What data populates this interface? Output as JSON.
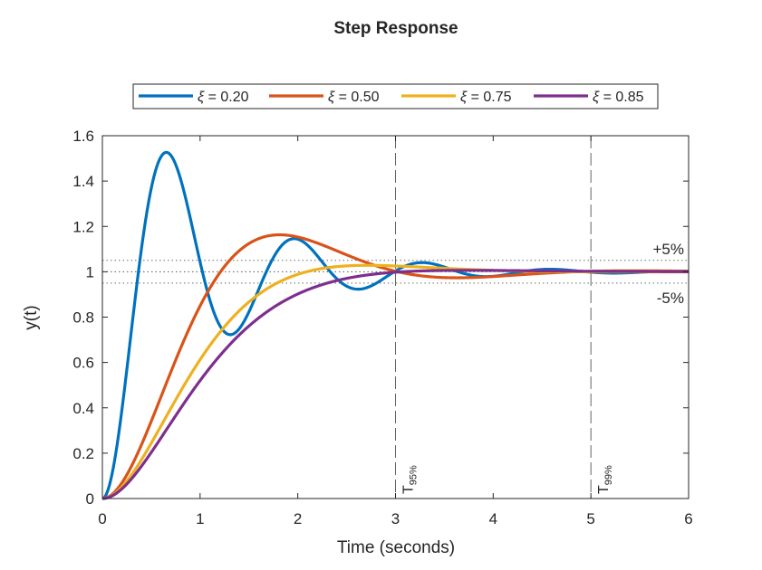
{
  "chart_data": {
    "type": "line",
    "title": "Step Response",
    "xlabel": "Time (seconds)",
    "ylabel": "y(t)",
    "xlim": [
      0,
      6
    ],
    "ylim": [
      0,
      1.6
    ],
    "xticks": [
      0,
      1,
      2,
      3,
      4,
      5,
      6
    ],
    "xtick_labels": [
      "0",
      "1",
      "2",
      "3",
      "4",
      "5",
      "6"
    ],
    "yticks": [
      0,
      0.2,
      0.4,
      0.6,
      0.8,
      1,
      1.2,
      1.4,
      1.6
    ],
    "ytick_labels": [
      "0",
      "0.2",
      "0.4",
      "0.6",
      "0.8",
      "1",
      "1.2",
      "1.4",
      "1.6"
    ],
    "grid": false,
    "legend_position": "top-center-outside",
    "legend_orientation": "horizontal",
    "series": [
      {
        "name": "ξ = 0.20",
        "symbol": "ξ",
        "value_text": " = 0.20",
        "zeta": 0.2,
        "wn": 4.9,
        "color": "#0072BD"
      },
      {
        "name": "ξ = 0.50",
        "symbol": "ξ",
        "value_text": " = 0.50",
        "zeta": 0.5,
        "wn": 2.0,
        "color": "#D95319"
      },
      {
        "name": "ξ = 0.75",
        "symbol": "ξ",
        "value_text": " = 0.75",
        "zeta": 0.75,
        "wn": 1.75,
        "color": "#EDB120"
      },
      {
        "name": "ξ = 0.85",
        "symbol": "ξ",
        "value_text": " = 0.85",
        "zeta": 0.85,
        "wn": 1.6,
        "color": "#7E2F8E"
      }
    ],
    "tolerance_band": {
      "upper": 1.05,
      "reference": 1.0,
      "lower": 0.95,
      "upper_label": "+5%",
      "lower_label": "-5%"
    },
    "settling_markers": [
      {
        "x": 3,
        "label_main": "T",
        "label_sub": "95%"
      },
      {
        "x": 5,
        "label_main": "T",
        "label_sub": "99%"
      }
    ]
  }
}
